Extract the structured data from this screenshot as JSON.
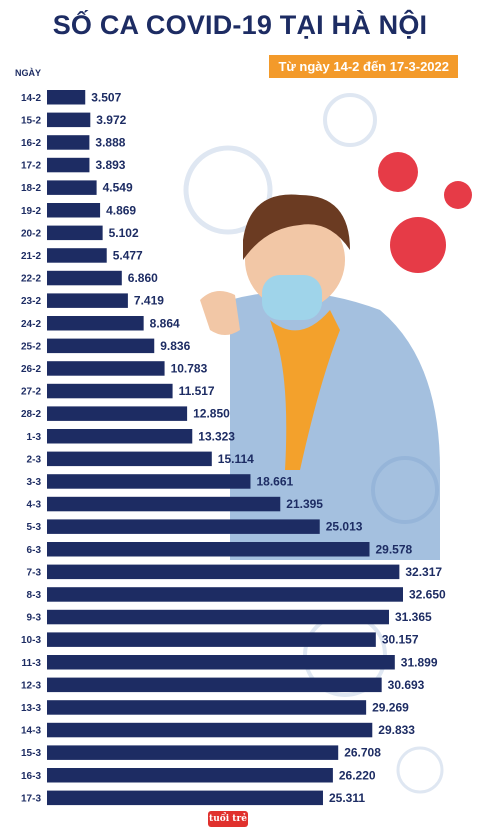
{
  "title": "SỐ CA COVID-19 TẠI HÀ NỘI",
  "subtitle": "Từ ngày 14-2 đến 17-3-2022",
  "logo_text": "tuổi trẻ",
  "colors": {
    "bar": "#1d2c63",
    "accent": "#f39a2a",
    "virus": "#e63b47",
    "illustration": "#d7e1ef"
  },
  "chart_data": {
    "type": "bar",
    "orientation": "horizontal",
    "title": "SỐ CA COVID-19 TẠI HÀ NỘI",
    "subtitle": "Từ ngày 14-2 đến 17-3-2022",
    "ylabel": "NGÀY",
    "xlabel": "",
    "categories": [
      "14-2",
      "15-2",
      "16-2",
      "17-2",
      "18-2",
      "19-2",
      "20-2",
      "21-2",
      "22-2",
      "23-2",
      "24-2",
      "25-2",
      "26-2",
      "27-2",
      "28-2",
      "1-3",
      "2-3",
      "3-3",
      "4-3",
      "5-3",
      "6-3",
      "7-3",
      "8-3",
      "9-3",
      "10-3",
      "11-3",
      "12-3",
      "13-3",
      "14-3",
      "15-3",
      "16-3",
      "17-3"
    ],
    "values": [
      3507,
      3972,
      3888,
      3893,
      4549,
      4869,
      5102,
      5477,
      6860,
      7419,
      8864,
      9836,
      10783,
      11517,
      12850,
      13323,
      15114,
      18661,
      21395,
      25013,
      29578,
      32317,
      32650,
      31365,
      30157,
      31899,
      30693,
      29269,
      29833,
      26708,
      26220,
      25311
    ],
    "value_labels": [
      "3.507",
      "3.972",
      "3.888",
      "3.893",
      "4.549",
      "4.869",
      "5.102",
      "5.477",
      "6.860",
      "7.419",
      "8.864",
      "9.836",
      "10.783",
      "11.517",
      "12.850",
      "13.323",
      "15.114",
      "18.661",
      "21.395",
      "25.013",
      "29.578",
      "32.317",
      "32.650",
      "31.365",
      "30.157",
      "31.899",
      "30.693",
      "29.269",
      "29.833",
      "26.708",
      "26.220",
      "25.311"
    ],
    "xlim": [
      0,
      32650
    ],
    "grid": false,
    "legend": "none"
  }
}
